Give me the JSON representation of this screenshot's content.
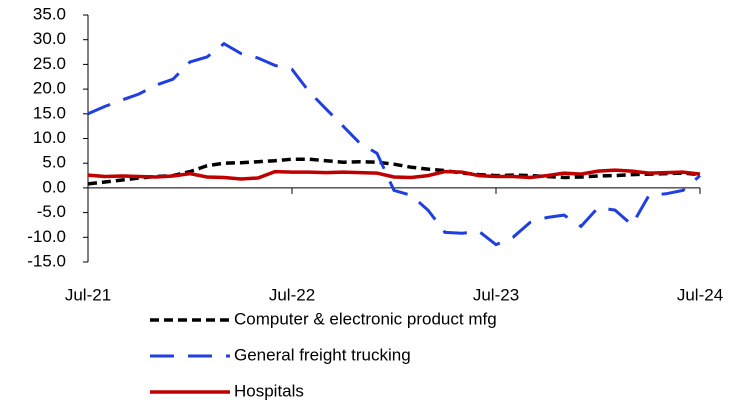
{
  "chart_data": {
    "type": "line",
    "categories": [
      "Jul-21",
      null,
      null,
      null,
      null,
      null,
      null,
      null,
      null,
      null,
      null,
      null,
      "Jul-22",
      null,
      null,
      null,
      null,
      null,
      null,
      null,
      null,
      null,
      null,
      null,
      "Jul-23",
      null,
      null,
      null,
      null,
      null,
      null,
      null,
      null,
      null,
      null,
      null,
      "Jul-24"
    ],
    "series": [
      {
        "name": "Computer & electronic product mfg",
        "color": "#000000",
        "values": [
          0.8,
          1.2,
          1.6,
          2,
          2.3,
          2.5,
          3.3,
          4.5,
          5,
          5.1,
          5.3,
          5.5,
          5.8,
          5.8,
          5.5,
          5.2,
          5.3,
          5.2,
          4.8,
          4.2,
          3.8,
          3.5,
          3,
          2.7,
          2.5,
          2.6,
          2.5,
          2.3,
          2.1,
          2.2,
          2.4,
          2.5,
          2.7,
          2.8,
          2.9,
          3,
          2.7
        ]
      },
      {
        "name": "General freight trucking",
        "color": "#1f3fe0",
        "values": [
          15,
          16.5,
          17.8,
          19,
          20.8,
          22,
          25.5,
          26.5,
          29.2,
          27.2,
          26.3,
          24.8,
          24,
          19.5,
          16,
          12.5,
          9,
          7,
          -0.5,
          -1.5,
          -4.5,
          -9,
          -9.2,
          -8.8,
          -11.5,
          -10,
          -7,
          -6,
          -5.5,
          -7.8,
          -4,
          -4.5,
          -7.5,
          -1.5,
          -1.2,
          -0.5,
          2.5
        ]
      },
      {
        "name": "Hospitals",
        "color": "#c00000",
        "values": [
          2.6,
          2.3,
          2.4,
          2.3,
          2.2,
          2.4,
          2.9,
          2.2,
          2.1,
          1.8,
          2,
          3.3,
          3.2,
          3.2,
          3.1,
          3.2,
          3.1,
          3,
          2.2,
          2.1,
          2.5,
          3.3,
          3.2,
          2.5,
          2.3,
          2.3,
          2.1,
          2.5,
          3,
          2.8,
          3.4,
          3.6,
          3.4,
          3,
          3.1,
          3.2,
          2.8
        ]
      }
    ],
    "ylim": [
      -15,
      35
    ],
    "yticks": [
      {
        "value": 35,
        "label": "35.0"
      },
      {
        "value": 30,
        "label": "30.0"
      },
      {
        "value": 25,
        "label": "25.0"
      },
      {
        "value": 20,
        "label": "20.0"
      },
      {
        "value": 15,
        "label": "15.0"
      },
      {
        "value": 10,
        "label": "10.0"
      },
      {
        "value": 5,
        "label": "5.0"
      },
      {
        "value": 0,
        "label": "0.0"
      },
      {
        "value": -5,
        "label": "-5.0"
      },
      {
        "value": -10,
        "label": "-10.0"
      },
      {
        "value": -15,
        "label": "-15.0"
      }
    ],
    "grid": false
  }
}
